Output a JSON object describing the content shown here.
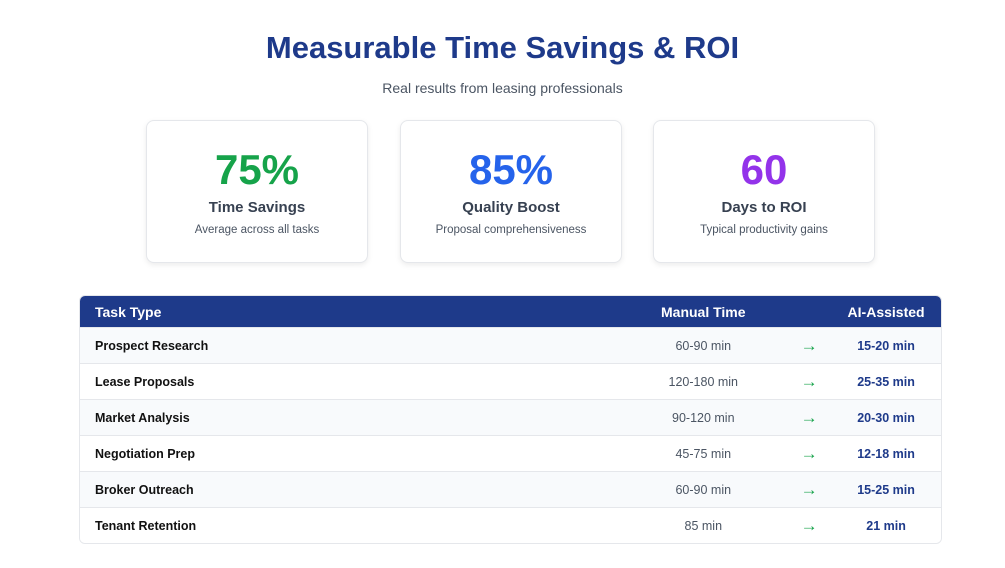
{
  "header": {
    "title": "Measurable Time Savings & ROI",
    "subtitle": "Real results from leasing professionals"
  },
  "stats": [
    {
      "value": "75%",
      "label": "Time Savings",
      "description": "Average across all tasks",
      "color": "#16a34a"
    },
    {
      "value": "85%",
      "label": "Quality Boost",
      "description": "Proposal comprehensiveness",
      "color": "#2563eb"
    },
    {
      "value": "60",
      "label": "Days to ROI",
      "description": "Typical productivity gains",
      "color": "#9333ea"
    }
  ],
  "table": {
    "columns": [
      "Task Type",
      "Manual Time",
      "AI-Assisted"
    ],
    "arrow": "→",
    "rows": [
      {
        "task": "Prospect Research",
        "manual": "60-90 min",
        "ai": "15-20 min"
      },
      {
        "task": "Lease Proposals",
        "manual": "120-180 min",
        "ai": "25-35 min"
      },
      {
        "task": "Market Analysis",
        "manual": "90-120 min",
        "ai": "20-30 min"
      },
      {
        "task": "Negotiation Prep",
        "manual": "45-75 min",
        "ai": "12-18 min"
      },
      {
        "task": "Broker Outreach",
        "manual": "60-90 min",
        "ai": "15-25 min"
      },
      {
        "task": "Tenant Retention",
        "manual": "85 min",
        "ai": "21 min"
      }
    ]
  }
}
